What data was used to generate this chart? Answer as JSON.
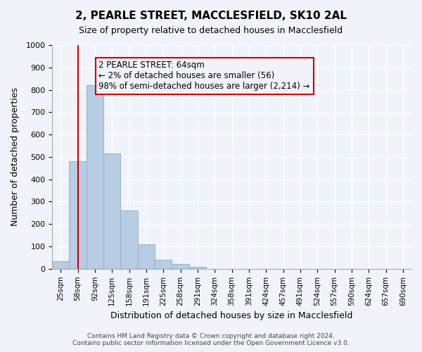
{
  "title": "2, PEARLE STREET, MACCLESFIELD, SK10 2AL",
  "subtitle": "Size of property relative to detached houses in Macclesfield",
  "xlabel": "Distribution of detached houses by size in Macclesfield",
  "ylabel": "Number of detached properties",
  "bar_labels": [
    "25sqm",
    "58sqm",
    "92sqm",
    "125sqm",
    "158sqm",
    "191sqm",
    "225sqm",
    "258sqm",
    "291sqm",
    "324sqm",
    "358sqm",
    "391sqm",
    "424sqm",
    "457sqm",
    "491sqm",
    "524sqm",
    "557sqm",
    "590sqm",
    "624sqm",
    "657sqm",
    "690sqm"
  ],
  "bar_values": [
    33,
    480,
    820,
    515,
    260,
    110,
    40,
    20,
    8,
    0,
    0,
    0,
    0,
    0,
    0,
    0,
    0,
    0,
    0,
    0,
    0
  ],
  "bar_color": "#b8cce4",
  "bar_edge_color": "#9ab3d5",
  "vline_x": 1,
  "vline_color": "#cc0000",
  "ylim": [
    0,
    1000
  ],
  "yticks": [
    0,
    100,
    200,
    300,
    400,
    500,
    600,
    700,
    800,
    900,
    1000
  ],
  "annotation_title": "2 PEARLE STREET: 64sqm",
  "annotation_line1": "← 2% of detached houses are smaller (56)",
  "annotation_line2": "98% of semi-detached houses are larger (2,214) →",
  "annotation_box_color": "#cc0000",
  "footer_line1": "Contains HM Land Registry data © Crown copyright and database right 2024.",
  "footer_line2": "Contains public sector information licensed under the Open Government Licence v3.0.",
  "bg_color": "#f0f4fa"
}
